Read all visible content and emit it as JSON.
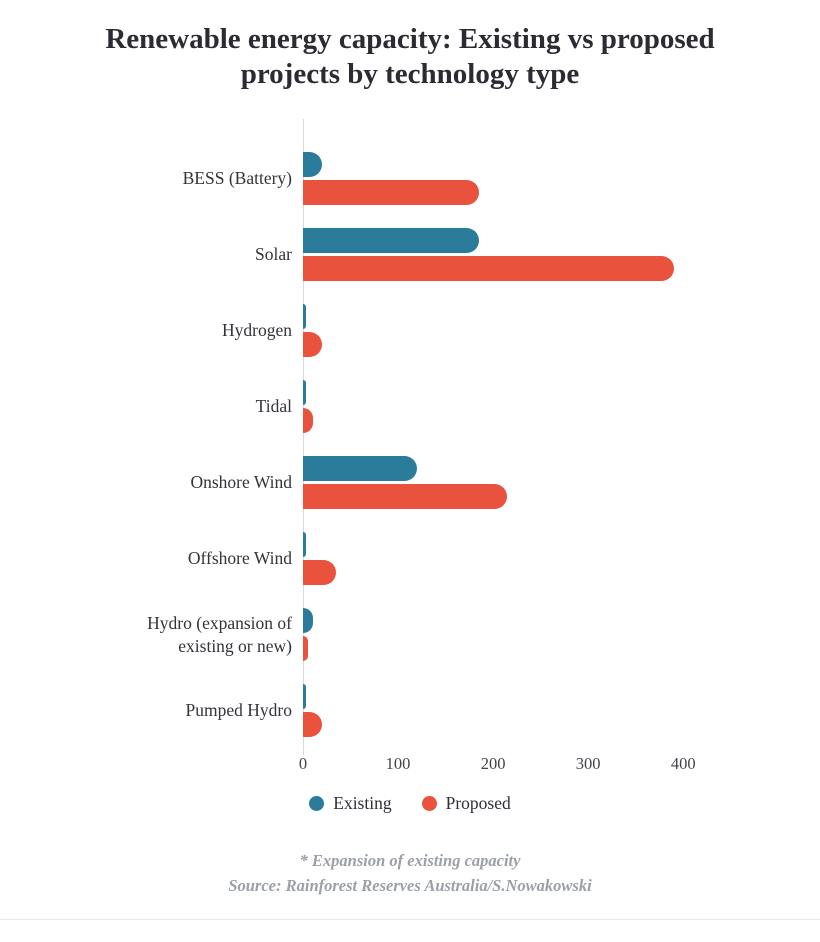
{
  "title": "Renewable energy capacity: Existing vs proposed projects by technology type",
  "chart_data": {
    "type": "bar",
    "orientation": "horizontal",
    "title": "Renewable energy capacity: Existing vs proposed projects by technology type",
    "xlabel": "",
    "ylabel": "",
    "categories": [
      "BESS (Battery)",
      "Solar",
      "Hydrogen",
      "Tidal",
      "Onshore Wind",
      "Offshore Wind",
      "Hydro (expansion of existing or new)",
      "Pumped Hydro"
    ],
    "series": [
      {
        "name": "Existing",
        "color": "#2b7c9b",
        "values": [
          20,
          185,
          3,
          3,
          120,
          3,
          10,
          3
        ]
      },
      {
        "name": "Proposed",
        "color": "#e9523c",
        "values": [
          185,
          390,
          20,
          10,
          215,
          35,
          5,
          20
        ]
      }
    ],
    "xticks": [
      0,
      100,
      200,
      300,
      400
    ],
    "xlim": [
      0,
      465
    ],
    "grid": false,
    "legend_position": "bottom",
    "axis_line_color": "#d9d9d9"
  },
  "footnotes": [
    "* Expansion of existing capacity",
    "Source: Rainforest Reserves Australia/S.Nowakowski"
  ]
}
